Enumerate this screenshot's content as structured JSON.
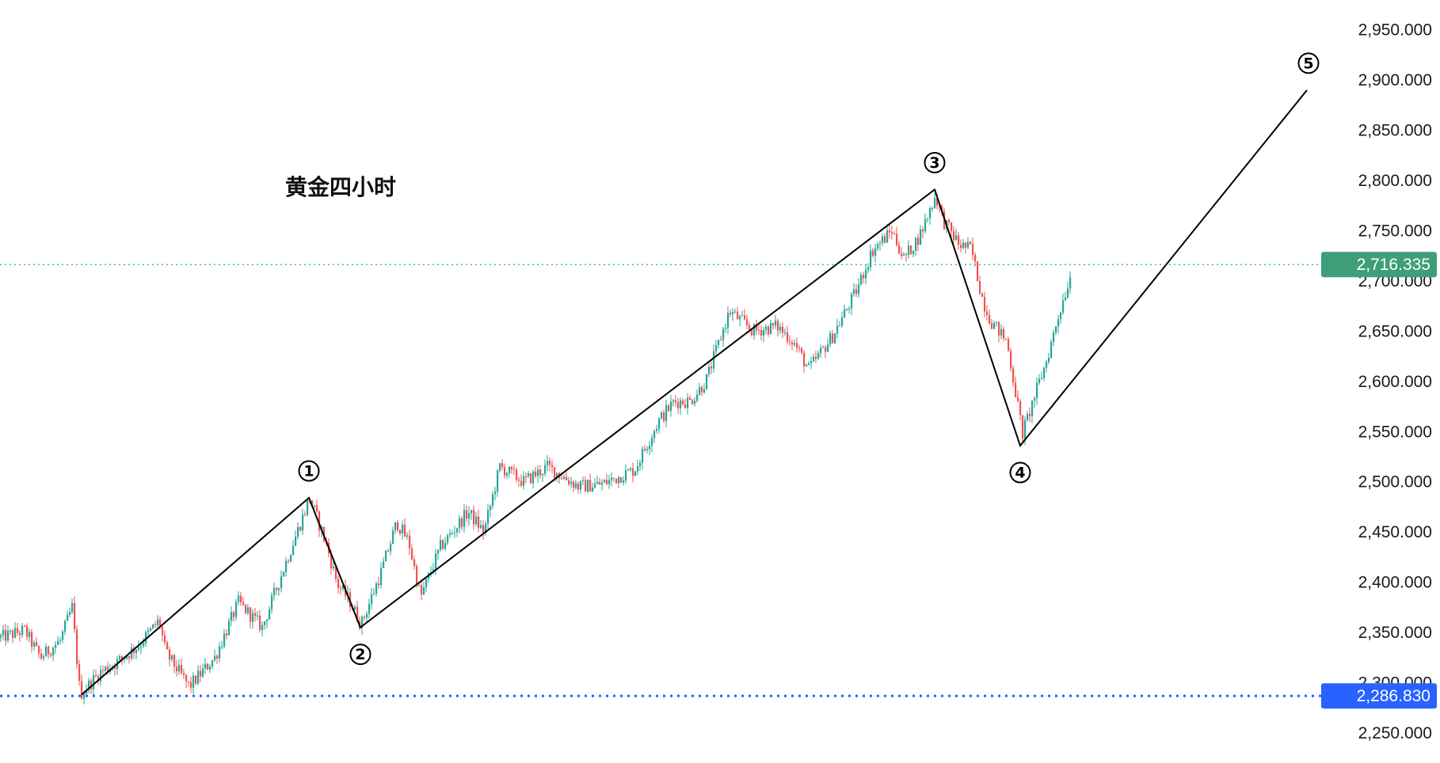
{
  "chart_data": {
    "type": "candlestick",
    "title": "黄金四小时",
    "y_axis": {
      "position": "right",
      "range": [
        2220,
        2975
      ],
      "ticks": [
        "2,250.000",
        "2,300.000",
        "2,350.000",
        "2,400.000",
        "2,450.000",
        "2,500.000",
        "2,550.000",
        "2,600.000",
        "2,650.000",
        "2,700.000",
        "2,750.000",
        "2,800.000",
        "2,850.000",
        "2,900.000",
        "2,950.000"
      ],
      "tick_values": [
        2250,
        2300,
        2350,
        2400,
        2450,
        2500,
        2550,
        2600,
        2650,
        2700,
        2750,
        2800,
        2850,
        2900,
        2950
      ]
    },
    "colors": {
      "up": "#26a69a",
      "down": "#ef5350",
      "wave_line": "#000000",
      "current_price_line": "#26a69a",
      "current_price_badge": "#3f9e7a",
      "support_line": "#2962ff",
      "support_badge": "#2962ff"
    },
    "current_price": {
      "value": 2716.335,
      "label": "2,716.335"
    },
    "support_level": {
      "value": 2286.83,
      "label": "2,286.830"
    },
    "wave_points": [
      {
        "label": "",
        "bar": 103,
        "price": 2288
      },
      {
        "label": "①",
        "bar": 390,
        "price": 2484,
        "label_position": "above"
      },
      {
        "label": "②",
        "bar": 455,
        "price": 2355,
        "label_position": "below"
      },
      {
        "label": "③",
        "bar": 1180,
        "price": 2791,
        "label_position": "above"
      },
      {
        "label": "④",
        "bar": 1288,
        "price": 2536,
        "label_position": "below"
      },
      {
        "label": "⑤",
        "bar": 1650,
        "price": 2890,
        "label_position": "above"
      }
    ],
    "price_path_anchors": [
      [
        0,
        2345
      ],
      [
        30,
        2352
      ],
      [
        50,
        2325
      ],
      [
        75,
        2342
      ],
      [
        90,
        2375
      ],
      [
        100,
        2288
      ],
      [
        125,
        2310
      ],
      [
        150,
        2322
      ],
      [
        175,
        2338
      ],
      [
        200,
        2362
      ],
      [
        208,
        2330
      ],
      [
        238,
        2296
      ],
      [
        270,
        2325
      ],
      [
        300,
        2380
      ],
      [
        330,
        2355
      ],
      [
        360,
        2420
      ],
      [
        390,
        2484
      ],
      [
        410,
        2440
      ],
      [
        425,
        2398
      ],
      [
        440,
        2382
      ],
      [
        455,
        2358
      ],
      [
        480,
        2410
      ],
      [
        500,
        2460
      ],
      [
        515,
        2440
      ],
      [
        530,
        2385
      ],
      [
        555,
        2435
      ],
      [
        590,
        2470
      ],
      [
        610,
        2450
      ],
      [
        630,
        2515
      ],
      [
        660,
        2500
      ],
      [
        690,
        2515
      ],
      [
        730,
        2495
      ],
      [
        760,
        2498
      ],
      [
        800,
        2512
      ],
      [
        830,
        2560
      ],
      [
        850,
        2580
      ],
      [
        870,
        2580
      ],
      [
        890,
        2600
      ],
      [
        920,
        2670
      ],
      [
        950,
        2650
      ],
      [
        980,
        2655
      ],
      [
        1000,
        2640
      ],
      [
        1020,
        2612
      ],
      [
        1050,
        2645
      ],
      [
        1080,
        2690
      ],
      [
        1100,
        2730
      ],
      [
        1125,
        2750
      ],
      [
        1140,
        2722
      ],
      [
        1160,
        2745
      ],
      [
        1180,
        2785
      ],
      [
        1190,
        2760
      ],
      [
        1210,
        2736
      ],
      [
        1225,
        2732
      ],
      [
        1240,
        2680
      ],
      [
        1250,
        2660
      ],
      [
        1270,
        2640
      ],
      [
        1290,
        2548
      ],
      [
        1305,
        2585
      ],
      [
        1320,
        2620
      ],
      [
        1335,
        2665
      ],
      [
        1352,
        2710
      ]
    ]
  }
}
